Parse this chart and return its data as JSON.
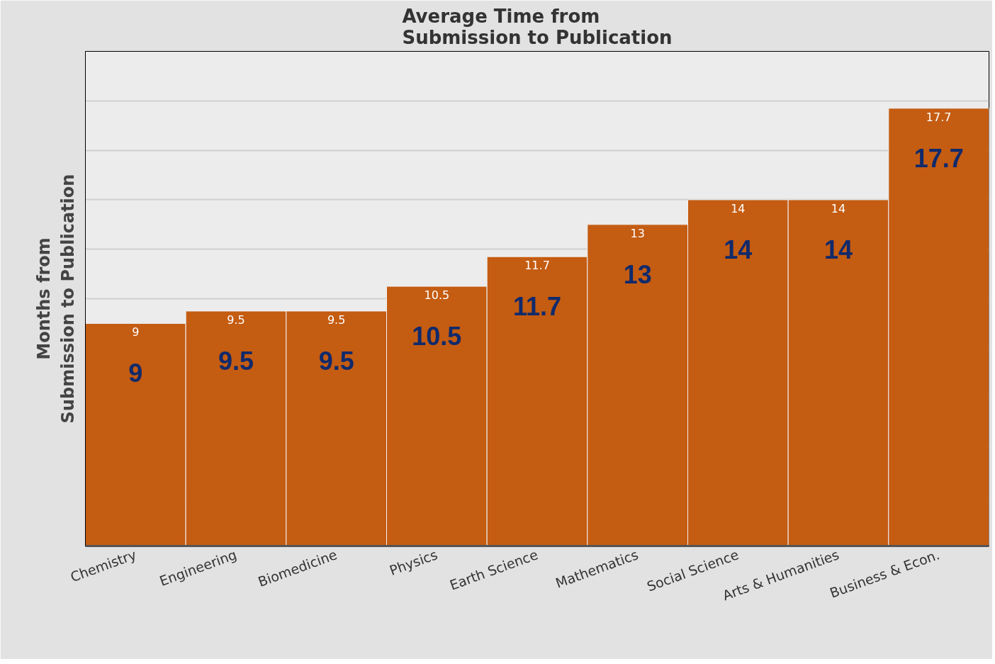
{
  "chart_data": {
    "type": "bar",
    "title": "Average Time from\nSubmission to Publication",
    "ylabel": "Months from\nSubmission to Publication",
    "categories": [
      "Chemistry",
      "Engineering",
      "Biomedicine",
      "Physics",
      "Earth Science",
      "Mathematics",
      "Social Science",
      "Arts & Humanities",
      "Business & Econ."
    ],
    "values": [
      9,
      9.5,
      9.5,
      10.5,
      11.7,
      13,
      14,
      14,
      17.7
    ],
    "color": "#c45c12",
    "ylim": [
      0,
      20
    ],
    "yticks": [
      {
        "value": 0,
        "label": null
      },
      {
        "value": 2,
        "label": null
      },
      {
        "value": 4,
        "label": null
      },
      {
        "value": 6,
        "label": null
      },
      {
        "value": 8,
        "label": null
      },
      {
        "value": 10,
        "label": null
      },
      {
        "value": 12,
        "label": null
      },
      {
        "value": 14,
        "label": null
      },
      {
        "value": 16,
        "label": null
      },
      {
        "value": 18,
        "label": null
      },
      {
        "value": 20,
        "label": null
      }
    ],
    "grid": "y",
    "annotations": [
      {
        "text": "9",
        "x": "Chemistry",
        "y": 9
      },
      {
        "text": "9.5",
        "x": "Engineering",
        "y": 9.5
      },
      {
        "text": "9.5",
        "x": "Biomedicine",
        "y": 9.5
      },
      {
        "text": "10.5",
        "x": "Physics",
        "y": 10.5
      },
      {
        "text": "11.7",
        "x": "Earth Science",
        "y": 11.7
      },
      {
        "text": "13",
        "x": "Mathematics",
        "y": 13
      },
      {
        "text": "14",
        "x": "Social Science",
        "y": 14
      },
      {
        "text": "14",
        "x": "Arts & Humanities",
        "y": 14
      },
      {
        "text": "17.7",
        "x": "Business & Econ.",
        "y": 17.7
      }
    ],
    "value_labels": [
      "9",
      "9.5",
      "9.5",
      "10.5",
      "11.7",
      "13",
      "14",
      "14",
      "17.7"
    ]
  }
}
